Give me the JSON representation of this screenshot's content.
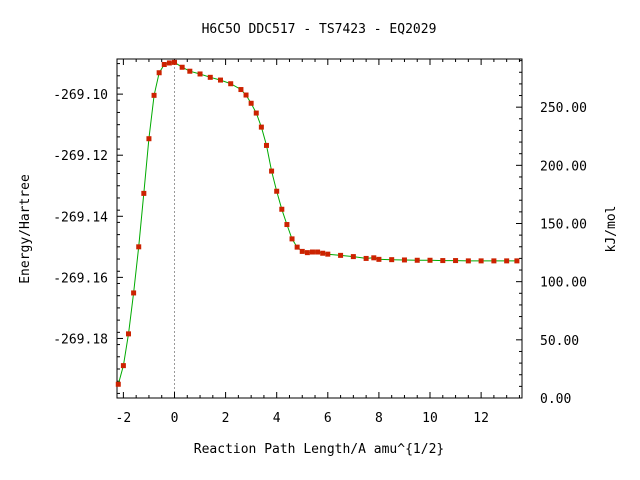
{
  "chart_data": {
    "type": "line",
    "title": "H6C5O   DDC517 - TS7423 - EQ2029",
    "xlabel": "Reaction Path Length/A amu^{1/2}",
    "ylabel": "Energy/Hartree",
    "y2label": "kJ/mol",
    "xlim": [
      -2.25,
      13.6
    ],
    "ylim": [
      -269.1995,
      -269.0885
    ],
    "y2lim": [
      0,
      291.4
    ],
    "x_ticks": [
      -2,
      0,
      2,
      4,
      6,
      8,
      10,
      12
    ],
    "x_tick_labels": [
      "-2",
      "0",
      "2",
      "4",
      "6",
      "8",
      "10",
      "12"
    ],
    "y_ticks": [
      -269.1,
      -269.12,
      -269.14,
      -269.16,
      -269.18
    ],
    "y_tick_labels": [
      "-269.10",
      "-269.12",
      "-269.14",
      "-269.16",
      "-269.18"
    ],
    "y2_ticks": [
      0,
      50,
      100,
      150,
      200,
      250
    ],
    "y2_tick_labels": [
      "0.00",
      "50.00",
      "100.00",
      "150.00",
      "200.00",
      "250.00"
    ],
    "line_color": "#00aa00",
    "marker_color": "#cc2200",
    "zero_line_color": "#999999",
    "grid": false,
    "legend": "none",
    "series": [
      {
        "x": [
          -2.2,
          -2.0,
          -1.8,
          -1.6,
          -1.4,
          -1.2,
          -1.0,
          -0.8,
          -0.6,
          -0.4,
          -0.2,
          0.0,
          0.3,
          0.6,
          1.0,
          1.4,
          1.8,
          2.2,
          2.6,
          2.8,
          3.0,
          3.2,
          3.4,
          3.6,
          3.8,
          4.0,
          4.2,
          4.4,
          4.6,
          4.8,
          5.0,
          5.2,
          5.4,
          5.6,
          5.8,
          6.0,
          6.5,
          7.0,
          7.5,
          7.8,
          8.0,
          8.5,
          9.0,
          9.5,
          10.0,
          10.5,
          11.0,
          11.5,
          12.0,
          12.5,
          13.0,
          13.4
        ],
        "y": [
          -269.195,
          -269.1889,
          -269.1785,
          -269.1651,
          -269.15,
          -269.1325,
          -269.1146,
          -269.1004,
          -269.093,
          -269.0903,
          -269.0898,
          -269.0896,
          -269.0912,
          -269.0925,
          -269.0934,
          -269.0945,
          -269.0954,
          -269.0966,
          -269.0985,
          -269.1003,
          -269.103,
          -269.1062,
          -269.1108,
          -269.1168,
          -269.1252,
          -269.1318,
          -269.1377,
          -269.1427,
          -269.1474,
          -269.1501,
          -269.1515,
          -269.1519,
          -269.1517,
          -269.1517,
          -269.1521,
          -269.1524,
          -269.1528,
          -269.1532,
          -269.1538,
          -269.1536,
          -269.1541,
          -269.1542,
          -269.1543,
          -269.1544,
          -269.1544,
          -269.1545,
          -269.1545,
          -269.1546,
          -269.1546,
          -269.1546,
          -269.1546,
          -269.1546
        ]
      }
    ]
  }
}
